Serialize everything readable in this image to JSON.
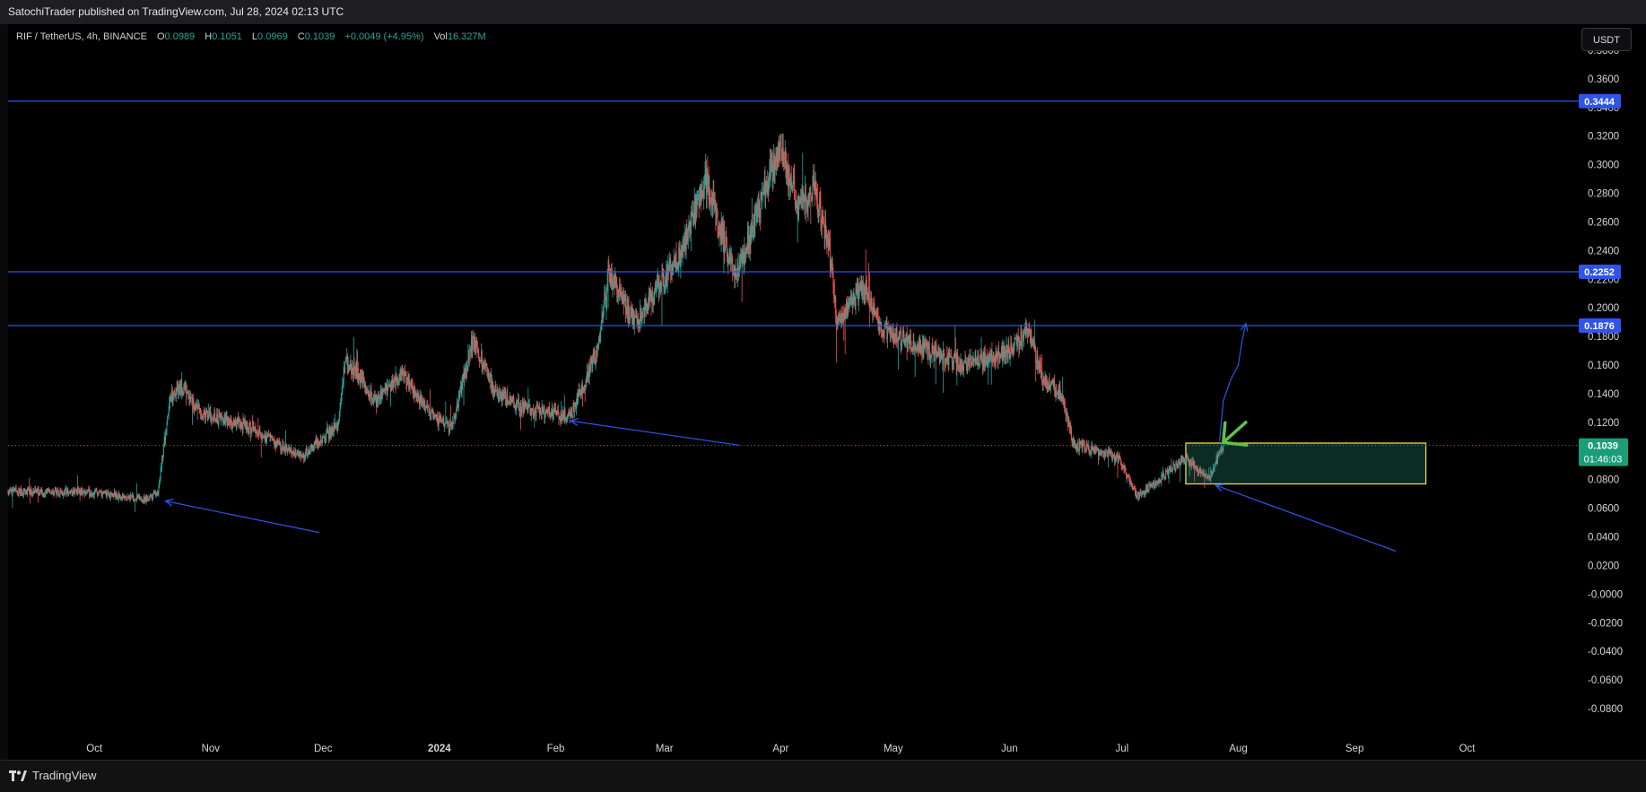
{
  "header": {
    "publisher_line": "SatochiTrader published on TradingView.com, Jul 28, 2024 02:13 UTC"
  },
  "legend": {
    "symbol": "RIF / TetherUS, 4h, BINANCE",
    "open_label": "O",
    "open": "0.0989",
    "high_label": "H",
    "high": "0.1051",
    "low_label": "L",
    "low": "0.0969",
    "close_label": "C",
    "close": "0.1039",
    "change": "+0.0049 (+4.95%)",
    "vol_label": "Vol",
    "vol": "16.327M"
  },
  "currency_button": "USDT",
  "footer": {
    "brand": "TradingView"
  },
  "price_badges": {
    "current_price": "0.1039",
    "countdown": "01:46:03"
  },
  "colors": {
    "up": "#26a69a",
    "down": "#ef5350",
    "level_line": "#2f54eb",
    "zone_border": "#f5d63d",
    "zone_fill": "#0c2b24",
    "green_arrow": "#5fc24a",
    "current_badge": "#1a9e78"
  },
  "chart_data": {
    "type": "candlestick",
    "symbol": "RIF / TetherUS",
    "timeframe": "4h",
    "exchange": "BINANCE",
    "ylim": [
      -0.09,
      0.39
    ],
    "y_ticks": [
      "0.3800",
      "0.3600",
      "0.3400",
      "0.3200",
      "0.3000",
      "0.2800",
      "0.2600",
      "0.2400",
      "0.2200",
      "0.2000",
      "0.1800",
      "0.1600",
      "0.1400",
      "0.1200",
      "0.1000",
      "0.0800",
      "0.0600",
      "0.0400",
      "0.0200",
      "-0.0000",
      "-0.0200",
      "-0.0400",
      "-0.0600",
      "-0.0800"
    ],
    "x_ticks": [
      "Oct",
      "Nov",
      "Dec",
      "2024",
      "Feb",
      "Mar",
      "Apr",
      "May",
      "Jun",
      "Jul",
      "Aug",
      "Sep",
      "Oct"
    ],
    "x_tick_dates": [
      "2023-10-01",
      "2023-11-01",
      "2023-12-01",
      "2024-01-01",
      "2024-02-01",
      "2024-03-01",
      "2024-04-01",
      "2024-05-01",
      "2024-06-01",
      "2024-07-01",
      "2024-08-01",
      "2024-09-01",
      "2024-10-01"
    ],
    "x_range": [
      "2023-09-08",
      "2024-10-31"
    ],
    "price_path": [
      {
        "date": "2023-09-08",
        "price": 0.072
      },
      {
        "date": "2023-10-01",
        "price": 0.071
      },
      {
        "date": "2023-10-15",
        "price": 0.066
      },
      {
        "date": "2023-10-18",
        "price": 0.072
      },
      {
        "date": "2023-10-21",
        "price": 0.135
      },
      {
        "date": "2023-10-24",
        "price": 0.145
      },
      {
        "date": "2023-10-30",
        "price": 0.125
      },
      {
        "date": "2023-11-10",
        "price": 0.118
      },
      {
        "date": "2023-11-25",
        "price": 0.096
      },
      {
        "date": "2023-12-05",
        "price": 0.118
      },
      {
        "date": "2023-12-07",
        "price": 0.165
      },
      {
        "date": "2023-12-15",
        "price": 0.135
      },
      {
        "date": "2023-12-22",
        "price": 0.155
      },
      {
        "date": "2023-12-29",
        "price": 0.128
      },
      {
        "date": "2024-01-04",
        "price": 0.115
      },
      {
        "date": "2024-01-10",
        "price": 0.178
      },
      {
        "date": "2024-01-16",
        "price": 0.14
      },
      {
        "date": "2024-01-25",
        "price": 0.128
      },
      {
        "date": "2024-02-05",
        "price": 0.125
      },
      {
        "date": "2024-02-12",
        "price": 0.17
      },
      {
        "date": "2024-02-15",
        "price": 0.225
      },
      {
        "date": "2024-02-22",
        "price": 0.19
      },
      {
        "date": "2024-03-05",
        "price": 0.235
      },
      {
        "date": "2024-03-12",
        "price": 0.29
      },
      {
        "date": "2024-03-20",
        "price": 0.22
      },
      {
        "date": "2024-03-28",
        "price": 0.285
      },
      {
        "date": "2024-04-01",
        "price": 0.31
      },
      {
        "date": "2024-04-06",
        "price": 0.27
      },
      {
        "date": "2024-04-10",
        "price": 0.285
      },
      {
        "date": "2024-04-14",
        "price": 0.24
      },
      {
        "date": "2024-04-16",
        "price": 0.19
      },
      {
        "date": "2024-04-23",
        "price": 0.215
      },
      {
        "date": "2024-04-28",
        "price": 0.185
      },
      {
        "date": "2024-05-10",
        "price": 0.17
      },
      {
        "date": "2024-05-20",
        "price": 0.16
      },
      {
        "date": "2024-06-01",
        "price": 0.17
      },
      {
        "date": "2024-06-06",
        "price": 0.185
      },
      {
        "date": "2024-06-10",
        "price": 0.15
      },
      {
        "date": "2024-06-15",
        "price": 0.14
      },
      {
        "date": "2024-06-18",
        "price": 0.105
      },
      {
        "date": "2024-06-30",
        "price": 0.095
      },
      {
        "date": "2024-07-05",
        "price": 0.068
      },
      {
        "date": "2024-07-12",
        "price": 0.082
      },
      {
        "date": "2024-07-18",
        "price": 0.095
      },
      {
        "date": "2024-07-22",
        "price": 0.085
      },
      {
        "date": "2024-07-24",
        "price": 0.08
      },
      {
        "date": "2024-07-28",
        "price": 0.104
      }
    ],
    "horizontal_levels": [
      {
        "price": 0.3444,
        "label": "0.3444"
      },
      {
        "price": 0.2252,
        "label": "0.2252"
      },
      {
        "price": 0.1876,
        "label": "0.1876"
      }
    ],
    "current_price_line": 0.1039,
    "zone": {
      "start": "2024-07-18",
      "end": "2024-09-20",
      "top": 0.1055,
      "bottom": 0.077
    },
    "annotations": [
      {
        "type": "arrow",
        "from": {
          "date": "2023-11-30",
          "price": 0.043
        },
        "to": {
          "date": "2023-10-20",
          "price": 0.065
        }
      },
      {
        "type": "arrow",
        "from": {
          "date": "2024-03-21",
          "price": 0.104
        },
        "to": {
          "date": "2024-02-05",
          "price": 0.121
        }
      },
      {
        "type": "arrow",
        "from": {
          "date": "2024-09-12",
          "price": 0.03
        },
        "to": {
          "date": "2024-07-26",
          "price": 0.076
        }
      },
      {
        "type": "path_arrow",
        "points": [
          {
            "date": "2024-07-27",
            "price": 0.107
          },
          {
            "date": "2024-07-28",
            "price": 0.135
          },
          {
            "date": "2024-07-30",
            "price": 0.15
          },
          {
            "date": "2024-08-01",
            "price": 0.16
          },
          {
            "date": "2024-08-02",
            "price": 0.177
          },
          {
            "date": "2024-08-03",
            "price": 0.189
          }
        ]
      },
      {
        "type": "highlight_arrow",
        "from": {
          "date": "2024-08-03",
          "price": 0.12
        },
        "to": {
          "date": "2024-07-28",
          "price": 0.106
        }
      }
    ]
  }
}
